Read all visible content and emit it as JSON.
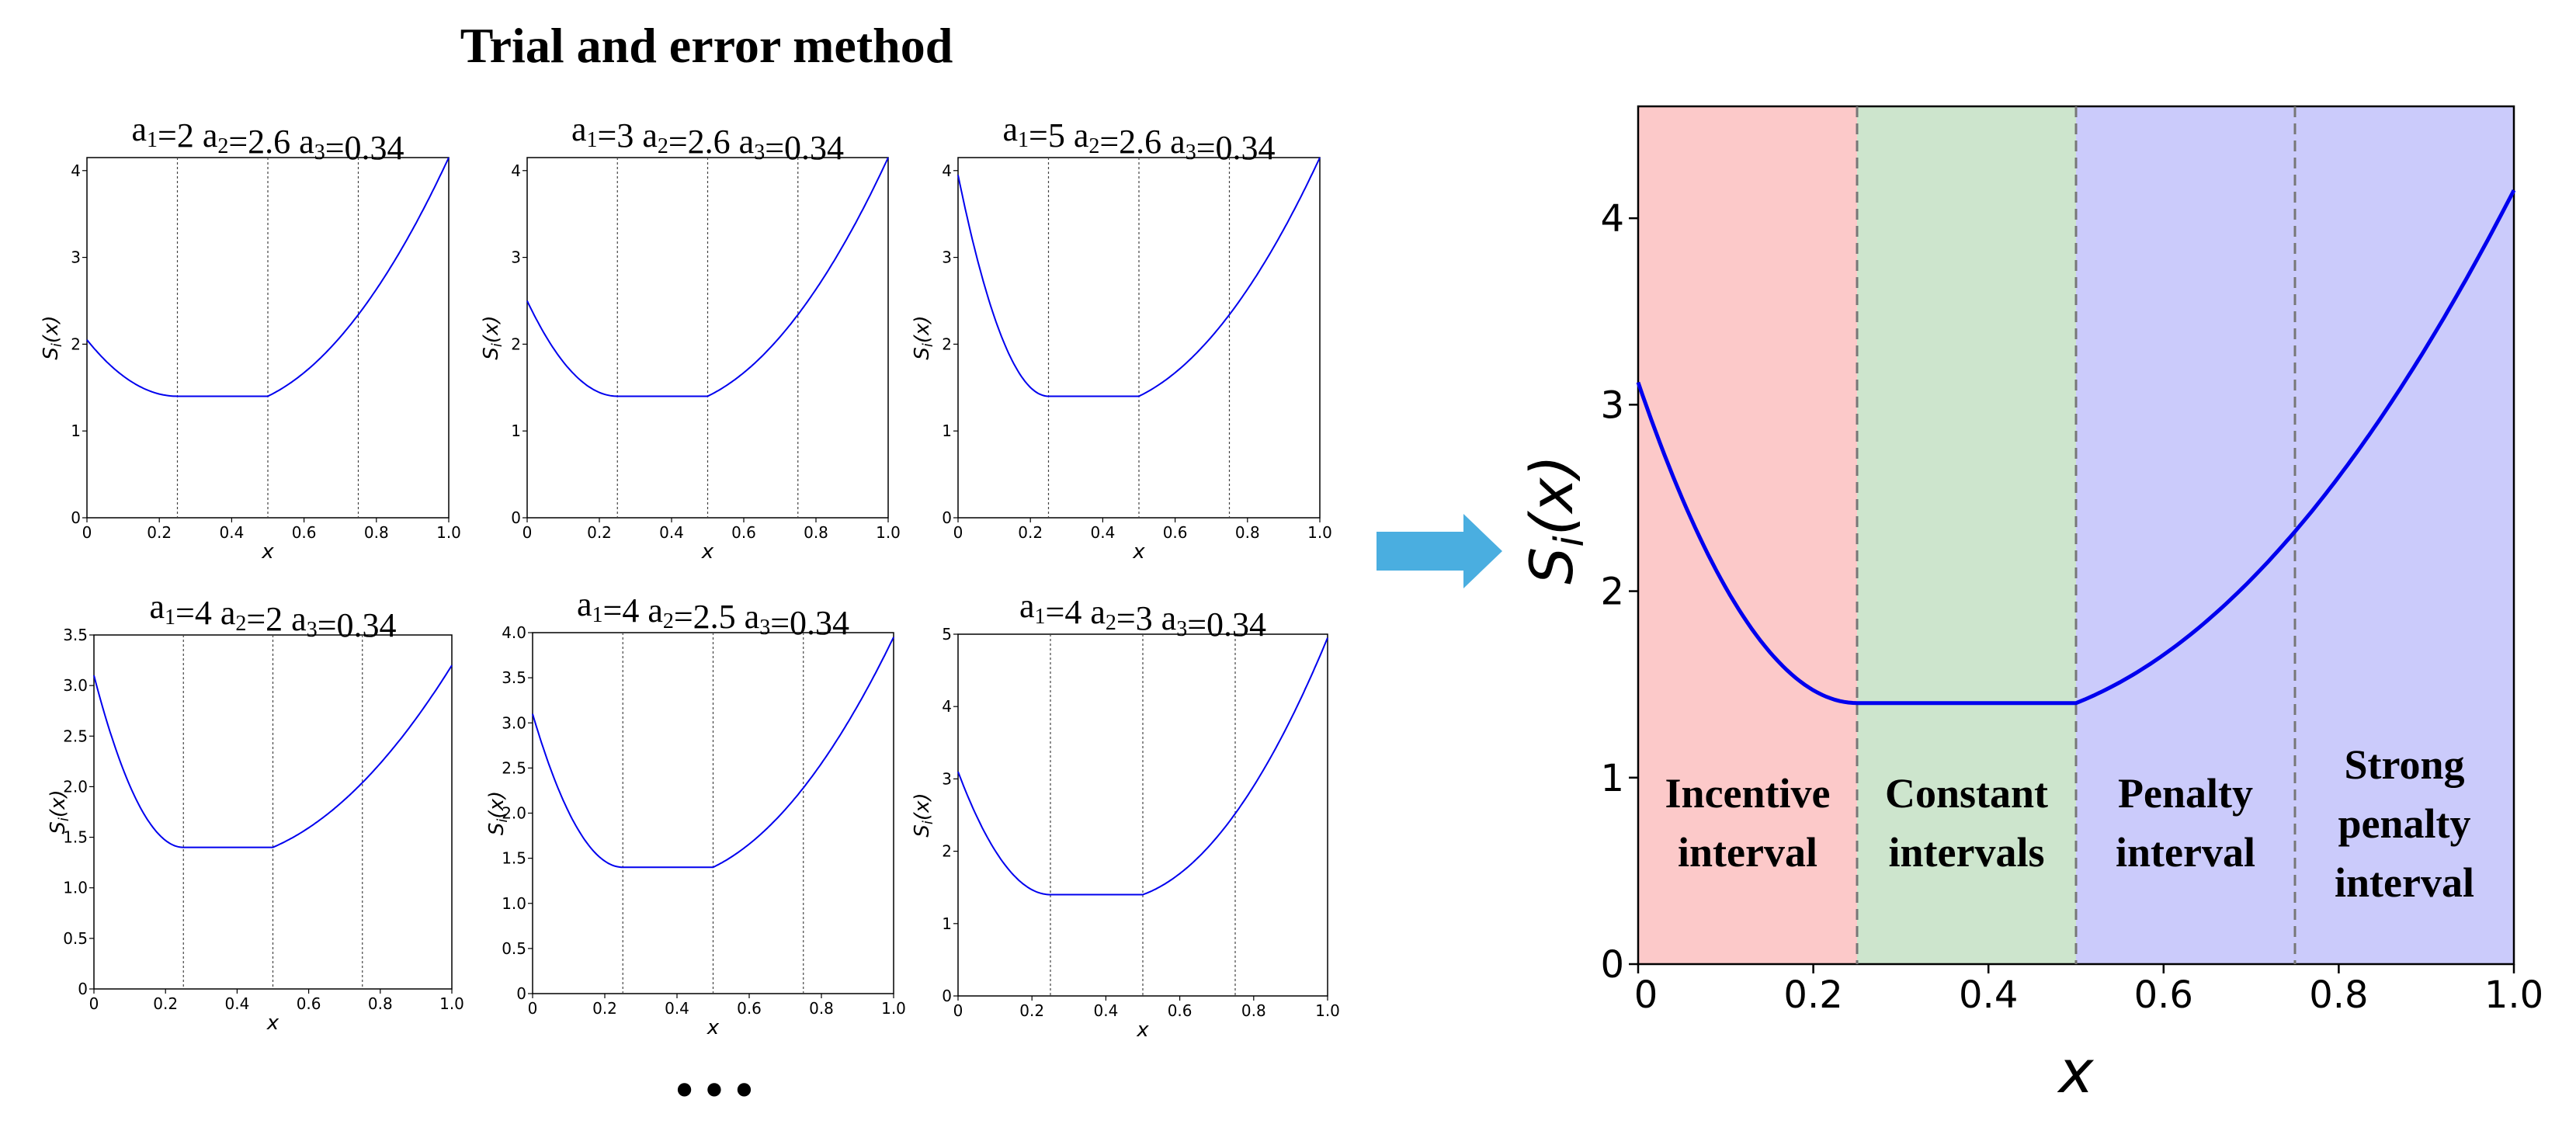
{
  "figure": {
    "title": "Trial and error method",
    "ellipsis": "• • •",
    "arrow_color": "#4aaee0"
  },
  "chart_data": [
    {
      "type": "line",
      "title": "a₁=2 a₂=2.6 a₃=0.34",
      "params": {
        "a1": 2,
        "a2": 2.6,
        "a3": 0.34
      },
      "xlabel": "x",
      "ylabel": "S_i(x)",
      "xlim": [
        0,
        1.0
      ],
      "ylim": [
        0,
        4.15
      ],
      "xticks": [
        "0",
        "0.2",
        "0.4",
        "0.6",
        "0.8",
        "1.0"
      ],
      "yticks": [
        "0",
        "1",
        "2",
        "3",
        "4"
      ],
      "vlines": [
        0.25,
        0.5,
        0.75
      ],
      "x": [
        0,
        0.25,
        0.5,
        0.75,
        1.0
      ],
      "y": [
        2.05,
        1.4,
        1.4,
        2.34,
        4.15
      ]
    },
    {
      "type": "line",
      "title": "a₁=3 a₂=2.6 a₃=0.34",
      "params": {
        "a1": 3,
        "a2": 2.6,
        "a3": 0.34
      },
      "xlabel": "x",
      "ylabel": "S_i(x)",
      "xlim": [
        0,
        1.0
      ],
      "ylim": [
        0,
        4.15
      ],
      "xticks": [
        "0",
        "0.2",
        "0.4",
        "0.6",
        "0.8",
        "1.0"
      ],
      "yticks": [
        "0",
        "1",
        "2",
        "3",
        "4"
      ],
      "vlines": [
        0.25,
        0.5,
        0.75
      ],
      "x": [
        0,
        0.25,
        0.5,
        0.75,
        1.0
      ],
      "y": [
        2.5,
        1.4,
        1.4,
        2.34,
        4.15
      ]
    },
    {
      "type": "line",
      "title": "a₁=5 a₂=2.6 a₃=0.34",
      "params": {
        "a1": 5,
        "a2": 2.6,
        "a3": 0.34
      },
      "xlabel": "x",
      "ylabel": "S_i(x)",
      "xlim": [
        0,
        1.0
      ],
      "ylim": [
        0,
        4.15
      ],
      "xticks": [
        "0",
        "0.2",
        "0.4",
        "0.6",
        "0.8",
        "1.0"
      ],
      "yticks": [
        "0",
        "1",
        "2",
        "3",
        "4"
      ],
      "vlines": [
        0.25,
        0.5,
        0.75
      ],
      "x": [
        0,
        0.25,
        0.5,
        0.75,
        1.0
      ],
      "y": [
        3.95,
        1.4,
        1.4,
        2.34,
        4.15
      ]
    },
    {
      "type": "line",
      "title": "a₁=4 a₂=2 a₃=0.34",
      "params": {
        "a1": 4,
        "a2": 2,
        "a3": 0.34
      },
      "xlabel": "x",
      "ylabel": "S_i(x)",
      "xlim": [
        0,
        1.0
      ],
      "ylim": [
        0,
        3.5
      ],
      "xticks": [
        "0",
        "0.2",
        "0.4",
        "0.6",
        "0.8",
        "1.0"
      ],
      "yticks": [
        "0",
        "0.5",
        "1.0",
        "1.5",
        "2.0",
        "2.5",
        "3.0",
        "3.5"
      ],
      "vlines": [
        0.25,
        0.5,
        0.75
      ],
      "x": [
        0,
        0.25,
        0.5,
        0.75,
        1.0
      ],
      "y": [
        3.1,
        1.4,
        1.4,
        2.04,
        3.2
      ]
    },
    {
      "type": "line",
      "title": "a₁=4 a₂=2.5 a₃=0.34",
      "params": {
        "a1": 4,
        "a2": 2.5,
        "a3": 0.34
      },
      "xlabel": "x",
      "ylabel": "S_i(x)",
      "xlim": [
        0,
        1.0
      ],
      "ylim": [
        0,
        4.0
      ],
      "xticks": [
        "0",
        "0.2",
        "0.4",
        "0.6",
        "0.8",
        "1.0"
      ],
      "yticks": [
        "0",
        "0.5",
        "1.0",
        "1.5",
        "2.0",
        "2.5",
        "3.0",
        "3.5",
        "4.0"
      ],
      "vlines": [
        0.25,
        0.5,
        0.75
      ],
      "x": [
        0,
        0.25,
        0.5,
        0.75,
        1.0
      ],
      "y": [
        3.1,
        1.4,
        1.4,
        2.28,
        3.95
      ]
    },
    {
      "type": "line",
      "title": "a₁=4 a₂=3 a₃=0.34",
      "params": {
        "a1": 4,
        "a2": 3,
        "a3": 0.34
      },
      "xlabel": "x",
      "ylabel": "S_i(x)",
      "xlim": [
        0,
        1.0
      ],
      "ylim": [
        0,
        5.0
      ],
      "xticks": [
        "0",
        "0.2",
        "0.4",
        "0.6",
        "0.8",
        "1.0"
      ],
      "yticks": [
        "0",
        "1",
        "2",
        "3",
        "4",
        "5"
      ],
      "vlines": [
        0.25,
        0.5,
        0.75
      ],
      "x": [
        0,
        0.25,
        0.5,
        0.75,
        1.0
      ],
      "y": [
        3.1,
        1.4,
        1.4,
        2.52,
        4.95
      ]
    },
    {
      "type": "line",
      "title": "",
      "xlabel": "x",
      "ylabel": "S_i(x)",
      "xlim": [
        0,
        1.0
      ],
      "ylim": [
        0,
        4.6
      ],
      "xticks": [
        "0",
        "0.2",
        "0.4",
        "0.6",
        "0.8",
        "1.0"
      ],
      "yticks": [
        "0",
        "1",
        "2",
        "3",
        "4"
      ],
      "vlines": [
        0.25,
        0.5,
        0.75
      ],
      "x": [
        0,
        0.25,
        0.5,
        0.75,
        1.0
      ],
      "y": [
        3.12,
        1.4,
        1.4,
        2.32,
        4.15
      ],
      "regions": [
        {
          "x0": 0,
          "x1": 0.25,
          "color": "#fcc9c9",
          "label": [
            "Incentive",
            "interval"
          ]
        },
        {
          "x0": 0.25,
          "x1": 0.5,
          "color": "#cde5cd",
          "label": [
            "Constant",
            "intervals"
          ]
        },
        {
          "x0": 0.5,
          "x1": 0.75,
          "color": "#cbcbfb",
          "label": [
            "Penalty",
            "interval"
          ]
        },
        {
          "x0": 0.75,
          "x1": 1.0,
          "color": "#cbcbfb",
          "label": [
            "Strong",
            "penalty",
            "interval"
          ]
        }
      ]
    }
  ]
}
